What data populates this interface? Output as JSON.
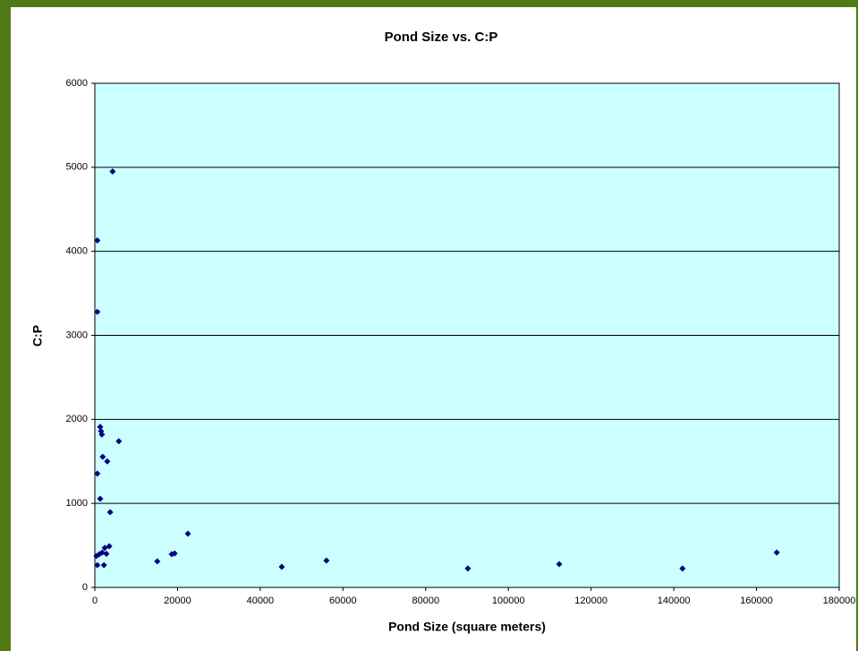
{
  "chart_data": {
    "type": "scatter",
    "title": "Pond Size vs. C:P",
    "x_label": "Pond Size (square meters)",
    "y_label": "C:P",
    "xlim": [
      0,
      180000
    ],
    "xticks": [
      0,
      20000,
      40000,
      60000,
      80000,
      100000,
      120000,
      140000,
      160000,
      180000
    ],
    "ylim": [
      0,
      6000
    ],
    "yticks": [
      0,
      1000,
      2000,
      3000,
      4000,
      5000,
      6000
    ],
    "grid": true,
    "color": "#000080",
    "x": [
      4300,
      600,
      600,
      1300,
      1500,
      1700,
      5800,
      1900,
      3000,
      600,
      1300,
      3700,
      22500,
      3500,
      2400,
      1100,
      400,
      1800,
      2800,
      2200,
      600,
      15100,
      18600,
      19300,
      45200,
      56000,
      90200,
      112300,
      142100,
      164900
    ],
    "values": [
      4950,
      4130,
      3280,
      1910,
      1860,
      1820,
      1740,
      1555,
      1500,
      1355,
      1055,
      895,
      640,
      490,
      470,
      395,
      375,
      415,
      400,
      265,
      265,
      310,
      395,
      405,
      245,
      320,
      225,
      277,
      225,
      415
    ]
  }
}
